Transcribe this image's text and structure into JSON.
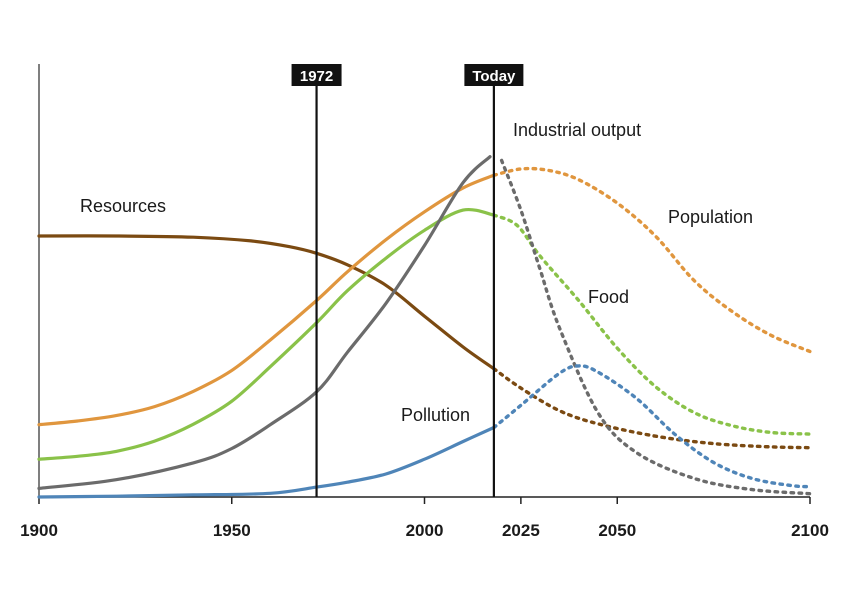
{
  "chart_data": {
    "type": "line",
    "title": "",
    "xlabel": "",
    "ylabel": "",
    "xlim": [
      1900,
      2100
    ],
    "ylim": [
      0,
      100
    ],
    "x_ticks": [
      1900,
      1950,
      2000,
      2025,
      2050,
      2100
    ],
    "grid": false,
    "markers": [
      {
        "year": 1972,
        "label": "1972"
      },
      {
        "year": 2018,
        "label": "Today"
      }
    ],
    "historical_end_year": 2018,
    "series": [
      {
        "name": "Resources",
        "label": "Resources",
        "color": "#7b4a12",
        "points": [
          [
            1900,
            63.5
          ],
          [
            1920,
            63.5
          ],
          [
            1940,
            63.2
          ],
          [
            1955,
            62.3
          ],
          [
            1965,
            60.9
          ],
          [
            1972,
            59.3
          ],
          [
            1980,
            56.5
          ],
          [
            1990,
            51.5
          ],
          [
            2000,
            44
          ],
          [
            2010,
            36.5
          ],
          [
            2018,
            31.2
          ],
          [
            2025,
            26.5
          ],
          [
            2035,
            21
          ],
          [
            2045,
            17.8
          ],
          [
            2060,
            14.8
          ],
          [
            2075,
            13
          ],
          [
            2090,
            12.2
          ],
          [
            2100,
            12
          ]
        ]
      },
      {
        "name": "Population",
        "label": "Population",
        "color": "#e0963e",
        "points": [
          [
            1900,
            17.6
          ],
          [
            1910,
            18.5
          ],
          [
            1920,
            19.8
          ],
          [
            1930,
            22
          ],
          [
            1940,
            25.7
          ],
          [
            1950,
            30.8
          ],
          [
            1960,
            38.2
          ],
          [
            1972,
            47.8
          ],
          [
            1980,
            54.8
          ],
          [
            1990,
            62.6
          ],
          [
            2000,
            69.4
          ],
          [
            2010,
            75.2
          ],
          [
            2018,
            78.3
          ],
          [
            2025,
            79.8
          ],
          [
            2032,
            79.5
          ],
          [
            2040,
            77.2
          ],
          [
            2050,
            71.5
          ],
          [
            2060,
            63.4
          ],
          [
            2070,
            52.6
          ],
          [
            2080,
            45
          ],
          [
            2090,
            39.3
          ],
          [
            2100,
            35.4
          ]
        ]
      },
      {
        "name": "Food",
        "label": "Food",
        "color": "#8ac249",
        "points": [
          [
            1900,
            9.2
          ],
          [
            1910,
            9.9
          ],
          [
            1920,
            11.1
          ],
          [
            1930,
            13.6
          ],
          [
            1940,
            17.7
          ],
          [
            1950,
            23.3
          ],
          [
            1960,
            31.7
          ],
          [
            1972,
            42.4
          ],
          [
            1980,
            50.2
          ],
          [
            1990,
            58.1
          ],
          [
            2000,
            64.9
          ],
          [
            2010,
            69.8
          ],
          [
            2018,
            68.6
          ],
          [
            2024,
            66.1
          ],
          [
            2030,
            58.6
          ],
          [
            2040,
            47.8
          ],
          [
            2050,
            36.2
          ],
          [
            2060,
            26.8
          ],
          [
            2070,
            20.5
          ],
          [
            2080,
            17.3
          ],
          [
            2090,
            15.7
          ],
          [
            2100,
            15.3
          ]
        ]
      },
      {
        "name": "Industrial output",
        "label": "Industrial output",
        "color": "#6b6b6b",
        "points": [
          [
            1900,
            2.1
          ],
          [
            1920,
            4.2
          ],
          [
            1940,
            8.3
          ],
          [
            1950,
            11.8
          ],
          [
            1960,
            17.6
          ],
          [
            1972,
            25.6
          ],
          [
            1980,
            35.2
          ],
          [
            1990,
            47.1
          ],
          [
            2000,
            61.2
          ],
          [
            2010,
            76.5
          ],
          [
            2017,
            82.8
          ],
          [
            2020,
            81.9
          ],
          [
            2025,
            69.8
          ],
          [
            2030,
            55.3
          ],
          [
            2035,
            41.2
          ],
          [
            2045,
            20.5
          ],
          [
            2055,
            10.8
          ],
          [
            2070,
            4.5
          ],
          [
            2085,
            1.8
          ],
          [
            2100,
            0.8
          ]
        ]
      },
      {
        "name": "Pollution",
        "label": "Pollution",
        "color": "#4f85b8",
        "points": [
          [
            1900,
            0
          ],
          [
            1920,
            0.2
          ],
          [
            1940,
            0.5
          ],
          [
            1960,
            0.9
          ],
          [
            1972,
            2.4
          ],
          [
            1980,
            3.6
          ],
          [
            1990,
            5.6
          ],
          [
            2000,
            9.2
          ],
          [
            2010,
            13.5
          ],
          [
            2018,
            16.9
          ],
          [
            2025,
            22.3
          ],
          [
            2035,
            30.1
          ],
          [
            2040,
            31.9
          ],
          [
            2045,
            30.4
          ],
          [
            2055,
            24
          ],
          [
            2065,
            15.2
          ],
          [
            2075,
            8.4
          ],
          [
            2085,
            4.5
          ],
          [
            2095,
            2.8
          ],
          [
            2100,
            2.5
          ]
        ]
      }
    ]
  }
}
